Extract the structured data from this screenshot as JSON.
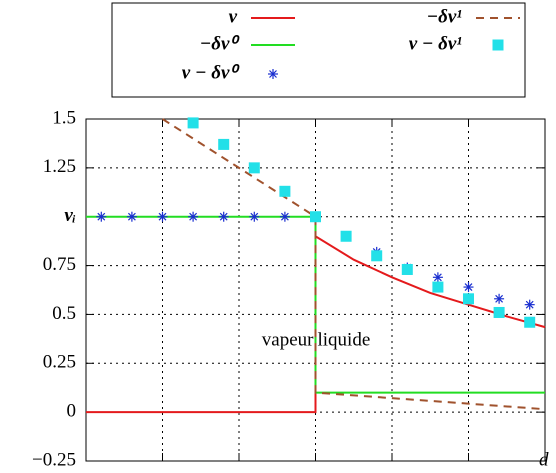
{
  "chart_data": {
    "type": "line",
    "x_label": "d",
    "xlim": [
      0,
      6
    ],
    "xticks": [
      1,
      2,
      3,
      4,
      5
    ],
    "ylim": [
      -0.25,
      1.5
    ],
    "yticks": [
      {
        "value": -0.25,
        "label": "−0.25"
      },
      0,
      0.25,
      0.5,
      0.75,
      {
        "value": 1,
        "label": "vᵢ"
      },
      1.25,
      1.5
    ],
    "grid": true,
    "annotations": [
      "vapeur",
      "liquide"
    ],
    "series": [
      {
        "name": "v",
        "color": "#e41a1c",
        "style": "solid",
        "x": [
          0,
          3,
          3,
          3.5,
          4,
          4.5,
          5,
          5.5,
          6
        ],
        "values": [
          0,
          0,
          0.9,
          0.78,
          0.69,
          0.61,
          0.55,
          0.49,
          0.435
        ]
      },
      {
        "name": "−δv⁰",
        "color": "#22dd22",
        "style": "solid",
        "x": [
          0,
          3,
          3,
          6
        ],
        "values": [
          1,
          1,
          0.1,
          0.1
        ]
      },
      {
        "name": "v − δv⁰",
        "color": "#1a2fd0",
        "style": "star",
        "x": [
          0.2,
          0.6,
          1.0,
          1.4,
          1.8,
          2.2,
          2.6,
          3.4,
          3.8,
          4.2,
          4.6,
          5.0,
          5.4,
          5.8
        ],
        "values": [
          1,
          1,
          1,
          1,
          1,
          1,
          1,
          0.9,
          0.82,
          0.74,
          0.69,
          0.64,
          0.58,
          0.55
        ]
      },
      {
        "name": "−δv¹",
        "color": "#a0522d",
        "style": "dashed",
        "x": [
          1,
          3,
          3,
          6
        ],
        "values": [
          1.5,
          1.0,
          0.1,
          0.015
        ]
      },
      {
        "name": "v − δv¹",
        "color": "#22e0e8",
        "style": "square",
        "x": [
          1.4,
          1.8,
          2.2,
          2.6,
          3.0,
          3.4,
          3.8,
          4.2,
          4.6,
          5.0,
          5.4,
          5.8
        ],
        "values": [
          1.48,
          1.37,
          1.25,
          1.13,
          1.0,
          0.9,
          0.8,
          0.73,
          0.64,
          0.58,
          0.51,
          0.46
        ]
      }
    ]
  }
}
